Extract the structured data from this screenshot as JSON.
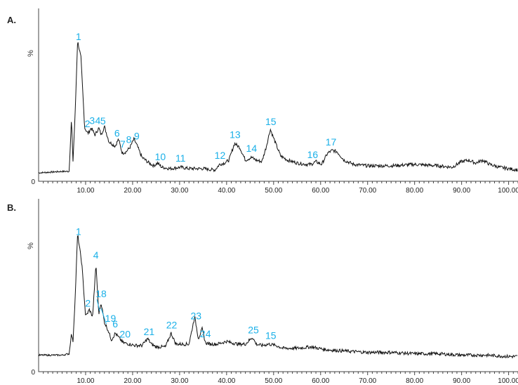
{
  "chart_data": [
    {
      "type": "line",
      "panel_label": "A.",
      "ylabel": "%",
      "y_ticks": [
        "0"
      ],
      "xlim": [
        0,
        102
      ],
      "x_ticks": [
        "10.00",
        "20.00",
        "30.00",
        "40.00",
        "50.00",
        "60.00",
        "70.00",
        "80.00",
        "90.00",
        "100.00"
      ],
      "ylim": [
        0,
        100
      ],
      "series": [
        {
          "x": [
            0,
            5,
            6.5,
            7,
            7.3,
            7.8,
            8.3,
            9,
            9.8,
            10.5,
            11.2,
            12,
            12.8,
            13.3,
            14,
            15,
            16.3,
            17,
            17.8,
            18.6,
            19.4,
            20.3,
            21,
            22,
            23.5,
            24.5,
            25.3,
            26.2,
            28,
            30.2,
            32,
            35,
            37.5,
            38.5,
            39.5,
            40.5,
            41.7,
            42.8,
            44,
            45.3,
            46.3,
            47.5,
            48.4,
            49.3,
            50.3,
            51.5,
            53,
            55,
            57,
            58,
            59,
            60.2,
            61.5,
            62.5,
            63.5,
            65,
            67,
            70,
            75,
            80,
            85,
            88,
            90,
            91.5,
            93,
            94.5,
            96,
            98,
            100,
            102
          ],
          "y": [
            6,
            7,
            7,
            45,
            13,
            50,
            100,
            88,
            38,
            34,
            38,
            33,
            38,
            33,
            39,
            28,
            25,
            30,
            20,
            21,
            24,
            30,
            25,
            17,
            13,
            11,
            13,
            10,
            9,
            10,
            9,
            9,
            8,
            12,
            13,
            15,
            27,
            24,
            15,
            17,
            15,
            14,
            24,
            37,
            28,
            18,
            15,
            13,
            12,
            12,
            14,
            12,
            20,
            22,
            21,
            15,
            12,
            11,
            11,
            12,
            11,
            10,
            14,
            15,
            13,
            15,
            12,
            10,
            9,
            8
          ]
        }
      ],
      "annotations": [
        "1",
        "2",
        "3",
        "4",
        "5",
        "6",
        "7",
        "8",
        "9",
        "10",
        "11",
        "12",
        "13",
        "14",
        "15",
        "16",
        "17"
      ],
      "annotation_x": [
        8.5,
        10.4,
        11.4,
        12.6,
        13.7,
        16.7,
        17.9,
        19.2,
        20.9,
        25.9,
        30.2,
        38.6,
        41.8,
        45.3,
        49.4,
        58.3,
        62.2
      ]
    },
    {
      "type": "line",
      "panel_label": "B.",
      "ylabel": "%",
      "y_ticks": [
        "0"
      ],
      "xlim": [
        0,
        102
      ],
      "x_ticks": [
        "10.00",
        "20.00",
        "30.00",
        "40.00",
        "50.00",
        "60.00",
        "70.00",
        "80.00",
        "90.00",
        "100.00"
      ],
      "ylim": [
        0,
        100
      ],
      "series": [
        {
          "x": [
            0,
            5,
            6.5,
            7,
            7.3,
            7.8,
            8.3,
            9.2,
            10,
            10.8,
            11.5,
            12.2,
            12.8,
            13.3,
            14,
            14.8,
            15.5,
            16.3,
            17,
            18,
            19.3,
            20.5,
            22,
            23.2,
            24,
            25,
            27,
            28.2,
            29.2,
            30.5,
            32,
            33.2,
            34,
            34.8,
            35.5,
            36.5,
            38,
            40,
            41,
            42.5,
            44,
            45.5,
            46.3,
            47.5,
            49,
            50.5,
            52,
            55,
            58,
            61,
            65,
            70,
            75,
            80,
            85,
            90,
            95,
            100,
            102
          ],
          "y": [
            12,
            12,
            13,
            28,
            21,
            55,
            100,
            78,
            40,
            45,
            40,
            78,
            42,
            50,
            36,
            30,
            23,
            28,
            25,
            21,
            20,
            19,
            19,
            24,
            20,
            18,
            18,
            28,
            20,
            20,
            20,
            40,
            24,
            31,
            21,
            20,
            20,
            22,
            21,
            20,
            20,
            25,
            20,
            19,
            20,
            19,
            17,
            17,
            18,
            16,
            15,
            14,
            14,
            13,
            13,
            12,
            12,
            11,
            11
          ]
        }
      ],
      "annotations": [
        "1",
        "2",
        "4",
        "18",
        "19",
        "6",
        "20",
        "21",
        "22",
        "23",
        "24",
        "25",
        "15"
      ],
      "annotation_x": [
        8.5,
        10.5,
        12.2,
        13.3,
        15.3,
        16.3,
        18.4,
        23.5,
        28.3,
        33.5,
        35.5,
        45.7,
        49.4
      ]
    }
  ]
}
